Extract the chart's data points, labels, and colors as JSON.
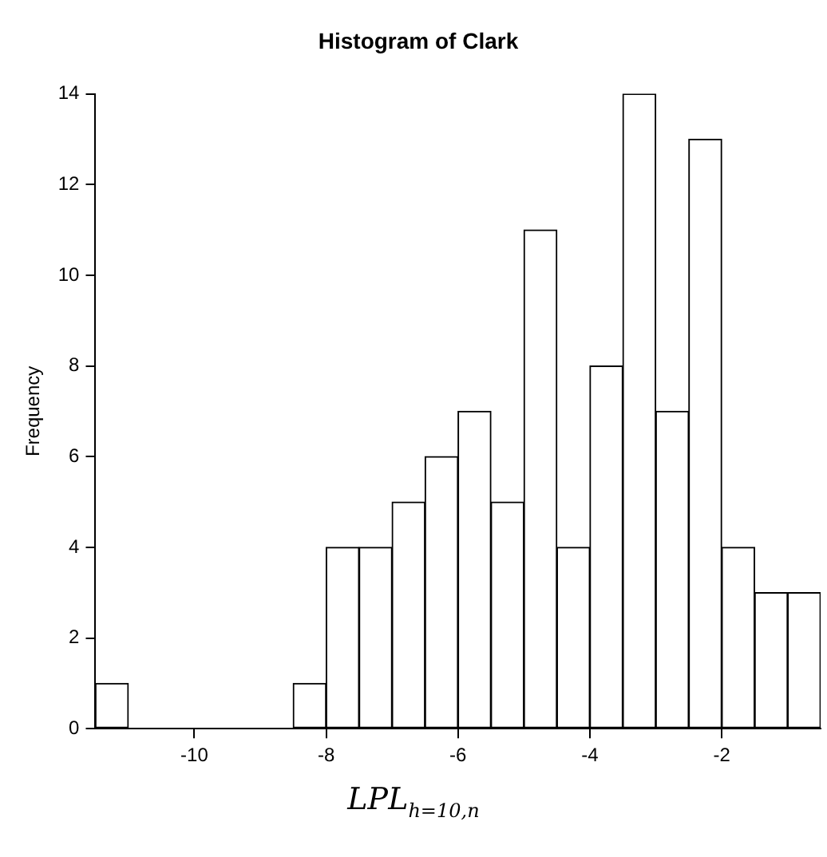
{
  "chart_data": {
    "type": "histogram",
    "title": "Histogram of Clark",
    "xlabel": "LPL$_{h=10,n}$",
    "ylabel": "Frequency",
    "bins": [
      -11.5,
      -11,
      -10.5,
      -10,
      -9.5,
      -9,
      -8.5,
      -8,
      -7.5,
      -7,
      -6.5,
      -6,
      -5.5,
      -5,
      -4.5,
      -4,
      -3.5,
      -3,
      -2.5,
      -2,
      -1.5,
      -1,
      -0.5
    ],
    "values": [
      1,
      0,
      0,
      0,
      0,
      0,
      1,
      4,
      4,
      5,
      6,
      7,
      5,
      11,
      4,
      8,
      14,
      7,
      13,
      4,
      3,
      3
    ],
    "color": "#ffffff",
    "xlim": [
      -11.5,
      -0.5
    ],
    "xticks": [
      -10,
      -8,
      -6,
      -4,
      -2
    ],
    "ylim": [
      0,
      14
    ],
    "yticks": [
      0,
      2,
      4,
      6,
      8,
      10,
      12,
      14
    ],
    "grid": false
  }
}
